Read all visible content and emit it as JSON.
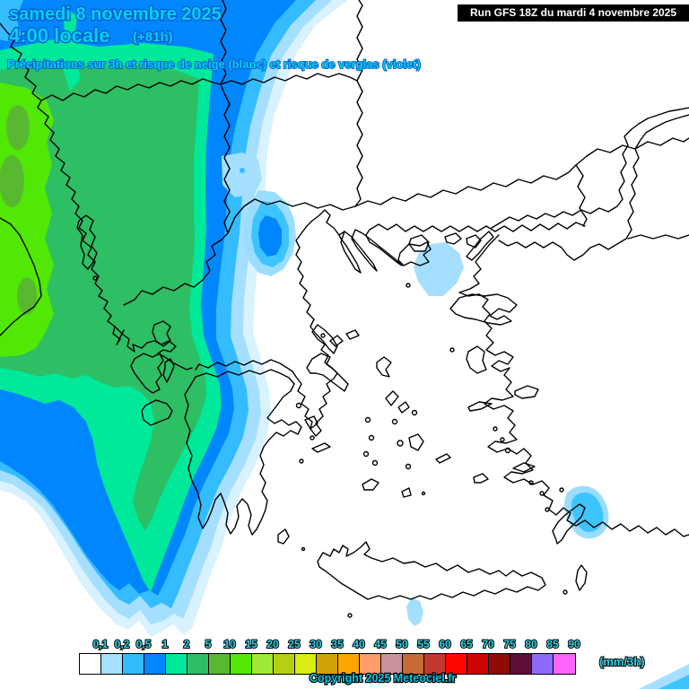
{
  "header": {
    "date_line": "samedi 8 novembre 2025",
    "time_line": "4:00 locale",
    "offset": "(+81h)",
    "subtitle": "Précipitations sur 3h et risque de neige (blanc) et risque de verglas (violet)",
    "text_color": "#00d2ee",
    "outline_color": "#0b57cf"
  },
  "run_info": {
    "label": "Run GFS 18Z du mardi 4 novembre 2025",
    "bg": "#000000",
    "fg": "#ffffff"
  },
  "legend": {
    "unit_label": "(mm/3h)",
    "values": [
      "0,1",
      "0,2",
      "0,5",
      "1",
      "2",
      "5",
      "10",
      "15",
      "20",
      "25",
      "30",
      "35",
      "40",
      "45",
      "50",
      "55",
      "60",
      "65",
      "70",
      "75",
      "80",
      "85",
      "90"
    ],
    "colors": [
      "#FFFFFF",
      "#A6E0FF",
      "#33BBFF",
      "#0087FF",
      "#00E89A",
      "#2EBE64",
      "#58B931",
      "#50E804",
      "#9FE838",
      "#B7CF13",
      "#D7ED16",
      "#CFA306",
      "#FFA401",
      "#FF9D6A",
      "#CA949C",
      "#C66B36",
      "#C33833",
      "#FF0600",
      "#CD0603",
      "#900A06",
      "#5D0F36",
      "#8B6AFC",
      "#FF65FB"
    ],
    "label_color": "#2fd6ea"
  },
  "copyright": {
    "label": "Copyright 2025 Meteociel.fr"
  },
  "map": {
    "region": "Grèce / mer Égée / ouest Turquie",
    "outline_color": "#000000",
    "palette": {
      "trace": "#D9F2FF",
      "p01": "#A5DFFF",
      "p02": "#35BCFF",
      "p05": "#0087FF",
      "p1": "#00E89A",
      "p2": "#2EBE64",
      "p5": "#58B931",
      "p10": "#50E804",
      "blob_outer": "#9ADDFF",
      "blob_mid": "#3DC4FF"
    },
    "precip_areas": [
      "bande-frontale-adriatique-ionienne",
      "maximum-local-nord-grece",
      "averse-egee-nord-est",
      "averse-rhodes",
      "averse-sud-crete",
      "averse-coin-bas-droit"
    ]
  }
}
